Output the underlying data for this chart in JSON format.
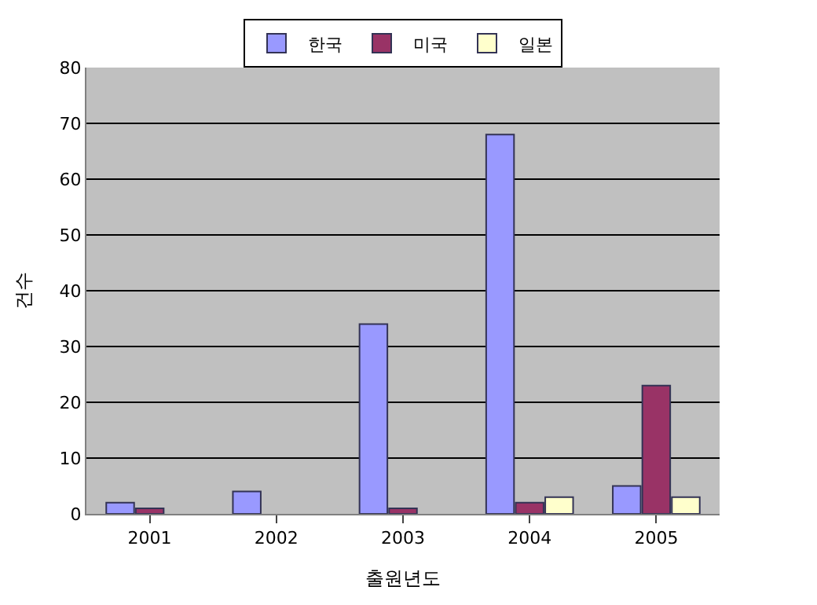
{
  "chart_data": {
    "type": "bar",
    "xlabel": "출원년도",
    "ylabel": "건수",
    "categories": [
      "2001",
      "2002",
      "2003",
      "2004",
      "2005"
    ],
    "series": [
      {
        "name": "한국",
        "color": "#9999ff",
        "values": [
          2,
          4,
          34,
          68,
          5
        ]
      },
      {
        "name": "미국",
        "color": "#993366",
        "values": [
          1,
          null,
          1,
          2,
          23
        ]
      },
      {
        "name": "일본",
        "color": "#ffffcc",
        "values": [
          null,
          null,
          null,
          3,
          3
        ]
      }
    ],
    "ylim": [
      0,
      80
    ],
    "yticks": [
      0,
      10,
      20,
      30,
      40,
      50,
      60,
      70,
      80
    ],
    "grid": "y",
    "legend": "top"
  }
}
